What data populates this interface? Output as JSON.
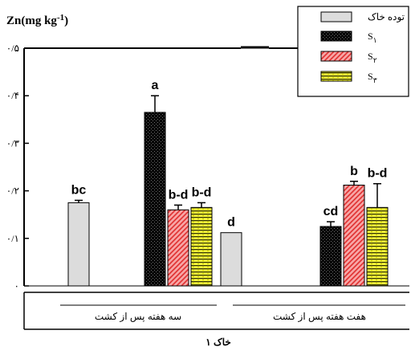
{
  "chart_data": {
    "type": "bar",
    "ylabel": "Zn(mg kg-1)",
    "ylabel_base": "Zn(mg kg",
    "ylabel_exp": "-1",
    "ylabel_close": ")",
    "xlabel": "خاک ۱",
    "ylim": [
      0,
      0.5
    ],
    "yticks": [
      0,
      0.1,
      0.2,
      0.3,
      0.4,
      0.5
    ],
    "ytick_labels": [
      "۰",
      "۰/۱",
      "۰/۲",
      "۰/۳",
      "۰/۴",
      "۰/۵"
    ],
    "groups": [
      "سه هفته پس از کشت",
      "هفت هفته پس از کشت"
    ],
    "series": [
      {
        "name": "توده خاک",
        "values": [
          0.175,
          0.112
        ],
        "errors": [
          0.005,
          0.0
        ],
        "letters": [
          "bc",
          "d"
        ],
        "fill": "#d9d9d9"
      },
      {
        "name": "S1",
        "values": [
          0.365,
          0.125
        ],
        "errors": [
          0.035,
          0.01
        ],
        "letters": [
          "a",
          "cd"
        ],
        "fill": "#000000"
      },
      {
        "name": "S2",
        "values": [
          0.16,
          0.212
        ],
        "errors": [
          0.01,
          0.008
        ],
        "letters": [
          "b-d",
          "b"
        ],
        "fill": "#f08080"
      },
      {
        "name": "S3",
        "values": [
          0.165,
          0.165
        ],
        "errors": [
          0.01,
          0.05
        ],
        "letters": [
          "b-d",
          "b-d"
        ],
        "fill": "#ffff00"
      }
    ],
    "legend_labels": [
      {
        "base": "توده خاک",
        "sub": ""
      },
      {
        "base": "S",
        "sub": "۱"
      },
      {
        "base": "S",
        "sub": "۲"
      },
      {
        "base": "S",
        "sub": "۳"
      }
    ],
    "legend_position": "top-right"
  }
}
